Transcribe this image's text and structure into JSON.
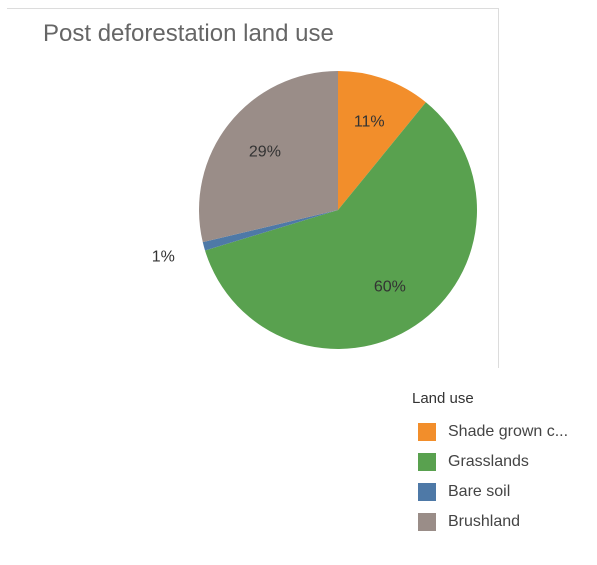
{
  "chart_data": {
    "type": "pie",
    "title": "Post deforestation land use",
    "slices": [
      {
        "label": "Shade grown c...",
        "value": 11,
        "display": "11%",
        "color": "#f28e2b"
      },
      {
        "label": "Grasslands",
        "value": 60,
        "display": "60%",
        "color": "#59a14f"
      },
      {
        "label": "Bare soil",
        "value": 1,
        "display": "1%",
        "color": "#4e79a7"
      },
      {
        "label": "Brushland",
        "value": 29,
        "display": "29%",
        "color": "#9a8d88"
      }
    ],
    "legend": {
      "title": "Land use",
      "placement": "bottom-right"
    }
  }
}
